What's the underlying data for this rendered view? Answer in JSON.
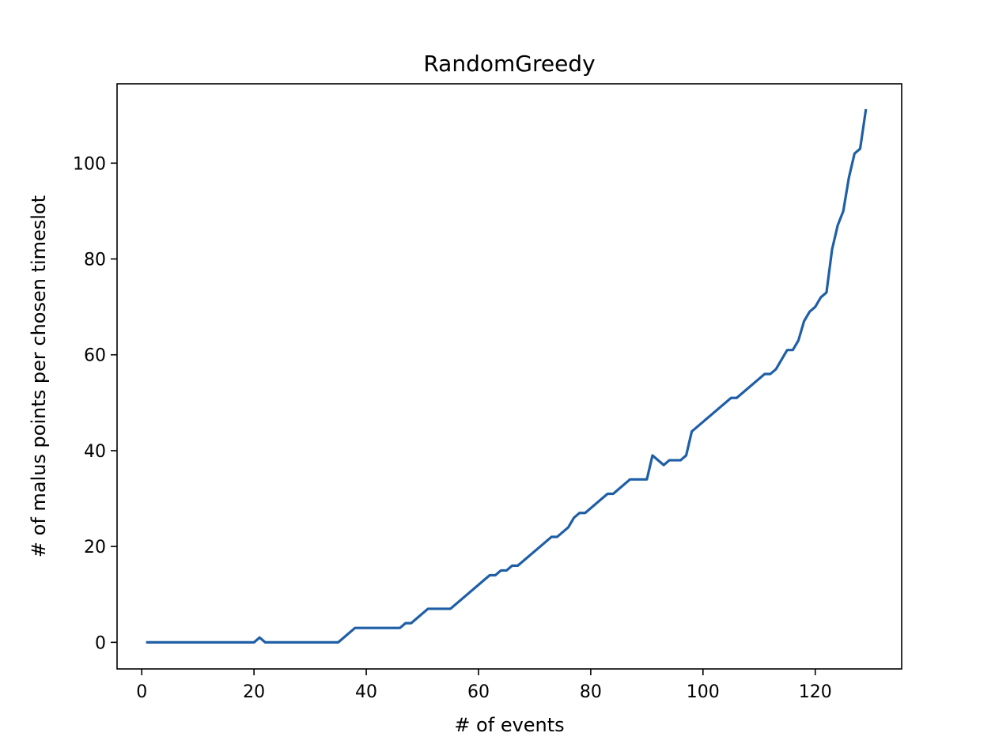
{
  "chart_data": {
    "type": "line",
    "title": "RandomGreedy",
    "xlabel": "# of events",
    "ylabel": "# of malus points per chosen timeslot",
    "xlim": [
      -4.4,
      135.4
    ],
    "ylim": [
      -5.55,
      116.55
    ],
    "xticks": [
      0,
      20,
      40,
      60,
      80,
      100,
      120
    ],
    "yticks": [
      0,
      20,
      40,
      60,
      80,
      100
    ],
    "grid": false,
    "series": [
      {
        "color": "#1f5fa6",
        "x": [
          1,
          20,
          21,
          22,
          35,
          38,
          46,
          47,
          48,
          51,
          55,
          62,
          63,
          64,
          65,
          66,
          67,
          73,
          74,
          76,
          77,
          78,
          79,
          83,
          84,
          87,
          88,
          90,
          91,
          93,
          94,
          96,
          97,
          98,
          105,
          106,
          111,
          112,
          113,
          115,
          116,
          117,
          118,
          119,
          120,
          121,
          122,
          123,
          124,
          125,
          126,
          127,
          128,
          129
        ],
        "y": [
          0,
          0,
          1,
          0,
          0,
          3,
          3,
          4,
          4,
          7,
          7,
          14,
          14,
          15,
          15,
          16,
          16,
          22,
          22,
          24,
          26,
          27,
          27,
          31,
          31,
          34,
          34,
          34,
          39,
          37,
          38,
          38,
          39,
          44,
          51,
          51,
          56,
          56,
          57,
          61,
          61,
          63,
          67,
          69,
          70,
          72,
          73,
          82,
          87,
          90,
          97,
          102,
          103,
          111
        ]
      }
    ]
  }
}
